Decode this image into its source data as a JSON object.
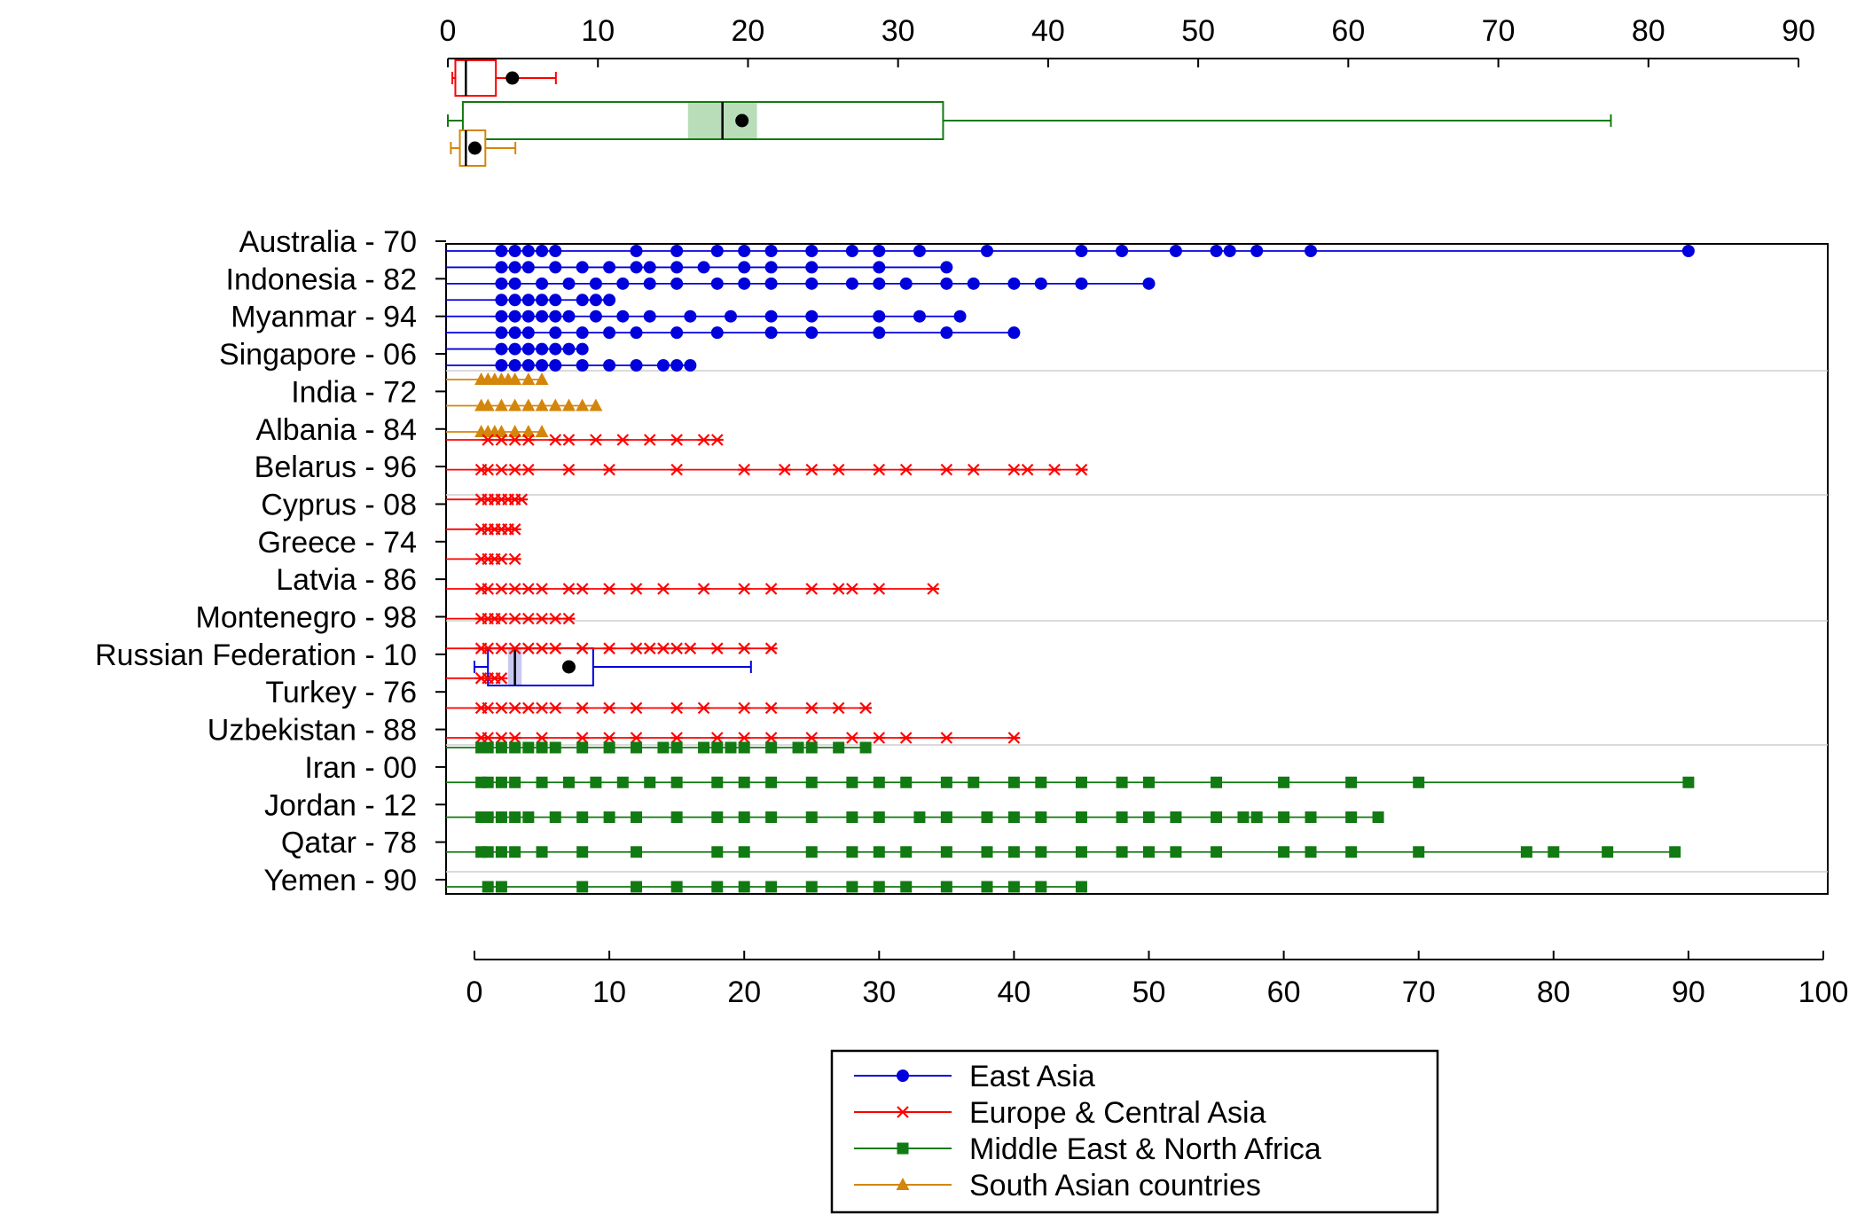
{
  "chart_data": {
    "type": "scatter",
    "title": "",
    "xlabel": "",
    "ylabel": "",
    "top_axis": {
      "range": [
        0,
        90
      ],
      "ticks": [
        0,
        10,
        20,
        30,
        40,
        50,
        60,
        70,
        80,
        90
      ]
    },
    "bottom_axis": {
      "range": [
        0,
        100
      ],
      "ticks": [
        0,
        10,
        20,
        30,
        40,
        50,
        60,
        70,
        80,
        90,
        100
      ]
    },
    "categories": [
      "Australia - 70",
      "Indonesia - 82",
      "Myanmar - 94",
      "Singapore - 06",
      "India - 72",
      "Albania - 84",
      "Belarus - 96",
      "Cyprus - 08",
      "Greece - 74",
      "Latvia - 86",
      "Montenegro - 98",
      "Russian Federation - 10",
      "Turkey - 76",
      "Uzbekistan - 88",
      "Iran - 00",
      "Jordan - 12",
      "Qatar - 78",
      "Yemen - 90"
    ],
    "series": [
      {
        "name": "East Asia",
        "color": "#0000dd",
        "marker": "circle",
        "rows": [
          [
            2,
            3,
            4,
            5,
            6,
            12,
            15,
            18,
            20,
            22,
            25,
            28,
            30,
            33,
            38,
            45,
            48,
            52,
            55,
            56,
            58,
            62,
            90
          ],
          [
            2,
            3,
            4,
            6,
            8,
            10,
            12,
            13,
            15,
            17,
            20,
            22,
            25,
            30,
            35
          ],
          [
            2,
            3,
            5,
            7,
            9,
            11,
            13,
            15,
            18,
            20,
            22,
            25,
            28,
            30,
            32,
            35,
            37,
            40,
            42,
            45,
            50
          ],
          [
            2,
            3,
            4,
            5,
            6,
            8,
            9,
            10
          ],
          [
            2,
            3,
            4,
            5,
            6,
            7,
            9,
            11,
            13,
            16,
            19,
            22,
            25,
            30,
            33,
            36
          ],
          [
            2,
            3,
            4,
            6,
            8,
            10,
            12,
            15,
            18,
            22,
            25,
            30,
            35,
            40
          ],
          [
            2,
            3,
            4,
            5,
            6,
            7,
            8
          ],
          [
            2,
            3,
            4,
            5,
            6,
            8,
            10,
            12,
            14,
            15,
            16
          ]
        ]
      },
      {
        "name": "South Asian countries",
        "color": "#d4860b",
        "marker": "triangle",
        "rows": [
          [
            0.5,
            1,
            1.5,
            2,
            2.5,
            3,
            4,
            5
          ],
          [
            0.5,
            1,
            2,
            3,
            4,
            5,
            6,
            7,
            8,
            9
          ],
          [
            0.5,
            1,
            1.5,
            2,
            3,
            4,
            5
          ]
        ]
      },
      {
        "name": "Europe & Central Asia",
        "color": "#ff0000",
        "marker": "x",
        "rows": [
          [
            1,
            2,
            3,
            4,
            6,
            7,
            9,
            11,
            13,
            15,
            17,
            18
          ],
          [
            0.5,
            1,
            2,
            3,
            4,
            7,
            10,
            15,
            20,
            23,
            25,
            27,
            30,
            32,
            35,
            37,
            40,
            41,
            43,
            45
          ],
          [
            0.5,
            1,
            1.5,
            2,
            2.5,
            3,
            3.5
          ],
          [
            0.5,
            1,
            1.5,
            2,
            2.5,
            3
          ],
          [
            0.5,
            1,
            1.5,
            2,
            3
          ],
          [
            0.5,
            1,
            2,
            3,
            4,
            5,
            7,
            8,
            10,
            12,
            14,
            17,
            20,
            22,
            25,
            27,
            28,
            30,
            34
          ],
          [
            0.5,
            1,
            1.5,
            2,
            3,
            4,
            5,
            6,
            7
          ],
          [
            0.5,
            1,
            2,
            3,
            4,
            5,
            6,
            8,
            10,
            12,
            13,
            14,
            15,
            16,
            18,
            20,
            22
          ],
          [
            0.5,
            1,
            1.5,
            2
          ],
          [
            0.5,
            1,
            2,
            3,
            4,
            5,
            6,
            8,
            10,
            12,
            15,
            17,
            20,
            22,
            25,
            27,
            29
          ],
          [
            0.5,
            1,
            2,
            3,
            5,
            8,
            10,
            12,
            15,
            18,
            20,
            22,
            25,
            28,
            30,
            32,
            35,
            40
          ]
        ]
      },
      {
        "name": "Middle East & North Africa",
        "color": "#127a12",
        "marker": "square",
        "rows": [
          [
            0.5,
            1,
            2,
            3,
            4,
            5,
            6,
            8,
            10,
            12,
            14,
            15,
            17,
            18,
            19,
            20,
            22,
            24,
            25,
            27,
            29
          ],
          [
            0.5,
            1,
            2,
            3,
            5,
            7,
            9,
            11,
            13,
            15,
            18,
            20,
            22,
            25,
            28,
            30,
            32,
            35,
            37,
            40,
            42,
            45,
            48,
            50,
            55,
            60,
            65,
            70,
            90
          ],
          [
            0.5,
            1,
            2,
            3,
            4,
            6,
            8,
            10,
            12,
            15,
            18,
            20,
            22,
            25,
            28,
            30,
            33,
            35,
            38,
            40,
            42,
            45,
            48,
            50,
            52,
            55,
            57,
            58,
            60,
            62,
            65,
            67
          ],
          [
            0.5,
            1,
            2,
            3,
            5,
            8,
            12,
            18,
            20,
            25,
            28,
            30,
            32,
            35,
            38,
            40,
            42,
            45,
            48,
            50,
            52,
            55,
            60,
            62,
            65,
            70,
            78,
            80,
            84,
            89
          ],
          [
            1,
            2,
            8,
            12,
            15,
            18,
            20,
            22,
            25,
            28,
            30,
            32,
            35,
            38,
            40,
            42,
            45
          ]
        ]
      }
    ],
    "legend": {
      "placement": "bottom",
      "entries": [
        "East Asia",
        "Europe & Central Asia",
        "Middle East & North Africa",
        "South Asian countries"
      ]
    },
    "box_plots": [
      {
        "group": "Europe & Central Asia",
        "axis": "top",
        "whisker_low": 0.3,
        "q1": 0.5,
        "median": 1.2,
        "q3": 3.2,
        "whisker_high": 7.2,
        "mean": 4.3
      },
      {
        "group": "Middle East & North Africa",
        "axis": "top",
        "whisker_low": 0,
        "q1": 1,
        "median": 18.3,
        "q3": 33,
        "whisker_high": 77.5,
        "mean": 19.6,
        "ci_low": 16,
        "ci_high": 20.6
      },
      {
        "group": "South Asian countries",
        "axis": "top",
        "whisker_low": 0.2,
        "q1": 0.8,
        "median": 1.2,
        "q3": 2.5,
        "whisker_high": 4.5,
        "mean": 1.8
      },
      {
        "group": "East Asia",
        "axis": "bottom",
        "whisker_low": 0,
        "q1": 1,
        "median": 3,
        "q3": 8.8,
        "whisker_high": 20.5,
        "mean": 7,
        "ci_low": 2.5,
        "ci_high": 3.5
      }
    ]
  }
}
